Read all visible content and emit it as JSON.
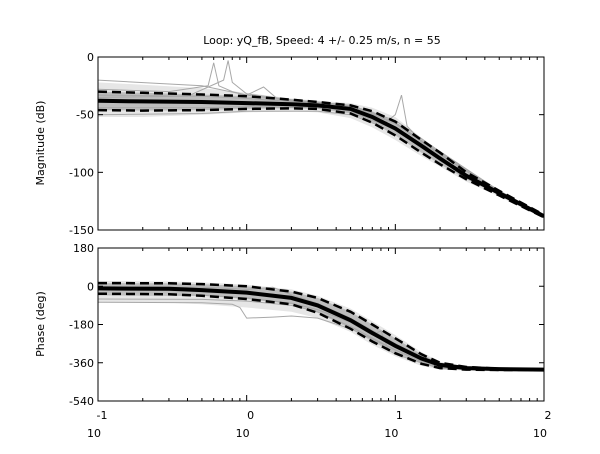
{
  "title": "Loop: yQ_fB, Speed: 4 +/- 0.25 m/s, n = 55",
  "chart_data": [
    {
      "type": "line",
      "title": "Loop: yQ_fB, Speed: 4 +/- 0.25 m/s, n = 55",
      "xlabel": "",
      "ylabel": "Magnitude (dB)",
      "xscale": "log",
      "xlim": [
        0.1,
        100
      ],
      "ylim": [
        -150,
        0
      ],
      "yticks": [
        0,
        -50,
        -100,
        -150
      ],
      "grid": false,
      "mean": {
        "x": [
          0.1,
          0.2,
          0.5,
          1,
          2,
          3,
          5,
          7,
          10,
          15,
          20,
          30,
          50,
          100
        ],
        "y": [
          -38,
          -38.5,
          -39,
          -40,
          -41,
          -42,
          -45,
          -52,
          -62,
          -77,
          -88,
          -103,
          -118,
          -138
        ]
      },
      "std_upper": {
        "x": [
          0.1,
          0.2,
          0.5,
          1,
          2,
          3,
          5,
          7,
          10,
          15,
          20,
          30,
          50,
          100
        ],
        "y": [
          -30,
          -31,
          -32.5,
          -34,
          -37,
          -39,
          -42,
          -47,
          -56,
          -72,
          -83,
          -100,
          -116,
          -137
        ]
      },
      "std_lower": {
        "x": [
          0.1,
          0.2,
          0.5,
          1,
          2,
          3,
          5,
          7,
          10,
          15,
          20,
          30,
          50,
          100
        ],
        "y": [
          -46,
          -46.5,
          -46,
          -45,
          -44.5,
          -45,
          -49,
          -57,
          -68,
          -83,
          -93,
          -106,
          -120,
          -139
        ]
      },
      "envelope_upper": {
        "x": [
          0.1,
          0.2,
          0.5,
          1,
          2,
          3,
          5,
          7,
          10,
          15,
          20,
          30,
          50,
          100
        ],
        "y": [
          -22,
          -24,
          -27,
          -31,
          -36,
          -38,
          -40,
          -44,
          -52,
          -70,
          -82,
          -99,
          -116,
          -137
        ]
      },
      "envelope_lower": {
        "x": [
          0.1,
          0.2,
          0.5,
          1,
          2,
          3,
          5,
          7,
          10,
          15,
          20,
          30,
          50,
          100
        ],
        "y": [
          -52,
          -52,
          -50,
          -48,
          -47,
          -48,
          -53,
          -61,
          -72,
          -86,
          -95,
          -108,
          -121,
          -140
        ]
      },
      "sample_curves": [
        {
          "x": [
            0.1,
            0.3,
            0.55,
            0.6,
            0.65,
            0.8,
            1,
            2,
            5,
            10,
            20,
            50,
            100
          ],
          "y": [
            -28,
            -30,
            -25,
            -5,
            -25,
            -30,
            -33,
            -38,
            -42,
            -55,
            -82,
            -116,
            -137
          ]
        },
        {
          "x": [
            0.1,
            0.4,
            0.7,
            0.75,
            0.8,
            1,
            2,
            5,
            10,
            20,
            50,
            100
          ],
          "y": [
            -35,
            -34,
            -20,
            -3,
            -22,
            -32,
            -37,
            -42,
            -58,
            -85,
            -117,
            -137
          ]
        },
        {
          "x": [
            0.1,
            0.5,
            1,
            1.3,
            1.6,
            3,
            5,
            10,
            20,
            50,
            100
          ],
          "y": [
            -20,
            -25,
            -33,
            -26,
            -36,
            -39,
            -42,
            -57,
            -83,
            -116,
            -137
          ]
        },
        {
          "x": [
            0.1,
            0.5,
            1,
            3,
            5,
            8,
            10,
            11,
            12,
            20,
            50,
            100
          ],
          "y": [
            -50,
            -49,
            -47,
            -47,
            -50,
            -60,
            -50,
            -33,
            -60,
            -90,
            -119,
            -138
          ]
        },
        {
          "x": [
            0.1,
            0.5,
            1,
            3,
            5,
            10,
            20,
            50,
            100
          ],
          "y": [
            -44,
            -44,
            -43,
            -44,
            -47,
            -63,
            -89,
            -118,
            -138
          ]
        },
        {
          "x": [
            0.1,
            0.5,
            1,
            3,
            5,
            10,
            20,
            50,
            100
          ],
          "y": [
            -33,
            -34,
            -36,
            -40,
            -43,
            -57,
            -84,
            -117,
            -137
          ]
        }
      ]
    },
    {
      "type": "line",
      "title": "",
      "xlabel": "",
      "ylabel": "Phase (deg)",
      "xscale": "log",
      "xlim": [
        0.1,
        100
      ],
      "ylim": [
        -540,
        180
      ],
      "yticks": [
        180,
        0,
        -180,
        -360,
        -540
      ],
      "xtick_labels": [
        {
          "base": "10",
          "exp": "-1"
        },
        {
          "base": "10",
          "exp": "0"
        },
        {
          "base": "10",
          "exp": "1"
        },
        {
          "base": "10",
          "exp": "2"
        }
      ],
      "grid": false,
      "mean": {
        "x": [
          0.1,
          0.3,
          0.5,
          1,
          2,
          3,
          5,
          7,
          10,
          15,
          20,
          30,
          50,
          100
        ],
        "y": [
          -10,
          -12,
          -18,
          -30,
          -55,
          -90,
          -160,
          -220,
          -280,
          -340,
          -370,
          -385,
          -390,
          -392
        ]
      },
      "std_upper": {
        "x": [
          0.1,
          0.3,
          0.5,
          1,
          2,
          3,
          5,
          7,
          10,
          15,
          20,
          30,
          50,
          100
        ],
        "y": [
          15,
          14,
          10,
          0,
          -25,
          -55,
          -120,
          -180,
          -245,
          -320,
          -360,
          -380,
          -388,
          -392
        ]
      },
      "std_lower": {
        "x": [
          0.1,
          0.3,
          0.5,
          1,
          2,
          3,
          5,
          7,
          10,
          15,
          20,
          30,
          50,
          100
        ],
        "y": [
          -35,
          -38,
          -45,
          -60,
          -85,
          -125,
          -200,
          -260,
          -315,
          -365,
          -385,
          -392,
          -394,
          -393
        ]
      },
      "envelope_upper": {
        "x": [
          0.1,
          0.3,
          0.5,
          1,
          2,
          3,
          5,
          7,
          10,
          15,
          20,
          30,
          50,
          100
        ],
        "y": [
          25,
          23,
          18,
          8,
          -15,
          -45,
          -105,
          -165,
          -230,
          -310,
          -355,
          -378,
          -387,
          -391
        ]
      },
      "envelope_lower": {
        "x": [
          0.1,
          0.3,
          0.5,
          1,
          2,
          3,
          5,
          7,
          10,
          15,
          20,
          30,
          50,
          100
        ],
        "y": [
          -75,
          -78,
          -85,
          -100,
          -120,
          -150,
          -215,
          -275,
          -330,
          -375,
          -392,
          -396,
          -396,
          -394
        ]
      },
      "sample_curves": [
        {
          "x": [
            0.1,
            0.5,
            0.8,
            0.9,
            1,
            1.5,
            2,
            3,
            5,
            10,
            20,
            50,
            100
          ],
          "y": [
            -75,
            -78,
            -85,
            -100,
            -150,
            -145,
            -140,
            -150,
            -200,
            -300,
            -385,
            -395,
            -394
          ]
        },
        {
          "x": [
            0.1,
            0.5,
            1,
            2,
            3,
            5,
            7,
            8,
            9,
            10,
            20,
            50,
            100
          ],
          "y": [
            -40,
            -42,
            -55,
            -80,
            -110,
            -170,
            -230,
            -210,
            -300,
            -320,
            -388,
            -394,
            -393
          ]
        },
        {
          "x": [
            0.1,
            0.5,
            1,
            1.5,
            2,
            3,
            5,
            10,
            20,
            50,
            100
          ],
          "y": [
            -5,
            -5,
            -15,
            -5,
            -40,
            -80,
            -150,
            -270,
            -370,
            -390,
            -392
          ]
        },
        {
          "x": [
            0.1,
            0.5,
            1,
            2,
            3,
            5,
            10,
            15,
            20,
            50,
            100
          ],
          "y": [
            -60,
            -62,
            -70,
            -90,
            -120,
            -190,
            -300,
            -355,
            -380,
            -393,
            -393
          ]
        }
      ]
    }
  ]
}
